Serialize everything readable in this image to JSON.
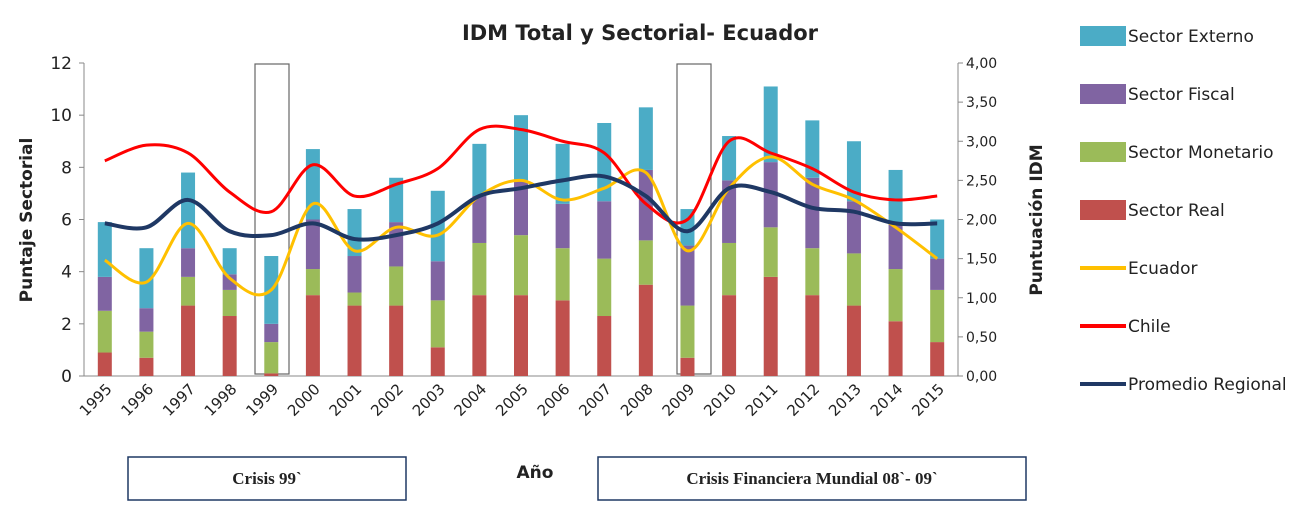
{
  "chart_data": {
    "type": "bar-line",
    "title": "IDM Total y Sectorial- Ecuador",
    "y_label": "Puntaje Sectorial",
    "y2_label": "Puntuación IDM",
    "x_label": "Año",
    "annotations": [
      "Crisis 99`",
      "Crisis Financiera  Mundial 08`- 09`"
    ],
    "categories": [
      "1995",
      "1996",
      "1997",
      "1998",
      "1999",
      "2000",
      "2001",
      "2002",
      "2003",
      "2004",
      "2005",
      "2006",
      "2007",
      "2008",
      "2009",
      "2010",
      "2011",
      "2012",
      "2013",
      "2014",
      "2015"
    ],
    "ylim": [
      0,
      12
    ],
    "yticks": [
      0,
      2,
      4,
      6,
      8,
      10,
      12
    ],
    "y2lim": [
      0,
      4
    ],
    "y2ticks": [
      {
        "value": 0,
        "label": "0,00"
      },
      {
        "value": 0.5,
        "label": "0,50"
      },
      {
        "value": 1,
        "label": "1,00"
      },
      {
        "value": 1.5,
        "label": "1,50"
      },
      {
        "value": 2,
        "label": "2,00"
      },
      {
        "value": 2.5,
        "label": "2,50"
      },
      {
        "value": 3,
        "label": "3,00"
      },
      {
        "value": 3.5,
        "label": "3,50"
      },
      {
        "value": 4,
        "label": "4,00"
      }
    ],
    "series": [
      {
        "name": "Sector Real",
        "type": "bar",
        "color": "#c0504d",
        "values": [
          0.9,
          0.7,
          2.7,
          2.3,
          0.1,
          3.1,
          2.7,
          2.7,
          1.1,
          3.1,
          3.1,
          2.9,
          2.3,
          3.5,
          0.7,
          3.1,
          3.8,
          3.1,
          2.7,
          2.1,
          1.3
        ]
      },
      {
        "name": "Sector Monetario",
        "type": "bar",
        "color": "#9bbb59",
        "values": [
          1.6,
          1.0,
          1.1,
          1.0,
          1.2,
          1.0,
          0.5,
          1.5,
          1.8,
          2.0,
          2.3,
          2.0,
          2.2,
          1.7,
          2.0,
          2.0,
          1.9,
          1.8,
          2.0,
          2.0,
          2.0
        ]
      },
      {
        "name": "Sector Fiscal",
        "type": "bar",
        "color": "#8064a2",
        "values": [
          1.3,
          0.9,
          1.1,
          0.6,
          0.7,
          1.9,
          1.4,
          1.7,
          1.5,
          1.8,
          2.1,
          1.7,
          2.2,
          2.7,
          2.3,
          2.4,
          2.5,
          2.7,
          2.0,
          1.8,
          1.2
        ]
      },
      {
        "name": "Sector Externo",
        "type": "bar",
        "color": "#4bacc6",
        "values": [
          2.1,
          2.3,
          2.9,
          1.0,
          2.6,
          2.7,
          1.8,
          1.7,
          2.7,
          2.0,
          2.5,
          2.3,
          3.0,
          2.4,
          1.4,
          1.7,
          2.9,
          2.2,
          2.3,
          2.0,
          1.5
        ]
      },
      {
        "name": "Ecuador",
        "type": "line",
        "axis": "y2",
        "color": "#ffc000",
        "values": [
          1.48,
          1.2,
          1.95,
          1.25,
          1.1,
          2.2,
          1.6,
          1.9,
          1.8,
          2.3,
          2.5,
          2.25,
          2.4,
          2.6,
          1.6,
          2.4,
          2.8,
          2.45,
          2.25,
          1.9,
          1.5
        ]
      },
      {
        "name": "Chile",
        "type": "line",
        "axis": "y2",
        "color": "#ff0000",
        "values": [
          2.75,
          2.95,
          2.85,
          2.35,
          2.1,
          2.7,
          2.3,
          2.45,
          2.65,
          3.15,
          3.15,
          3.0,
          2.85,
          2.2,
          2.0,
          3.0,
          2.85,
          2.65,
          2.35,
          2.25,
          2.3
        ]
      },
      {
        "name": "Promedio Regional",
        "type": "line",
        "axis": "y2",
        "color": "#1f3864",
        "values": [
          1.95,
          1.9,
          2.25,
          1.85,
          1.8,
          1.95,
          1.75,
          1.8,
          1.95,
          2.3,
          2.4,
          2.5,
          2.55,
          2.3,
          1.85,
          2.4,
          2.35,
          2.15,
          2.1,
          1.95,
          1.95
        ]
      }
    ]
  }
}
